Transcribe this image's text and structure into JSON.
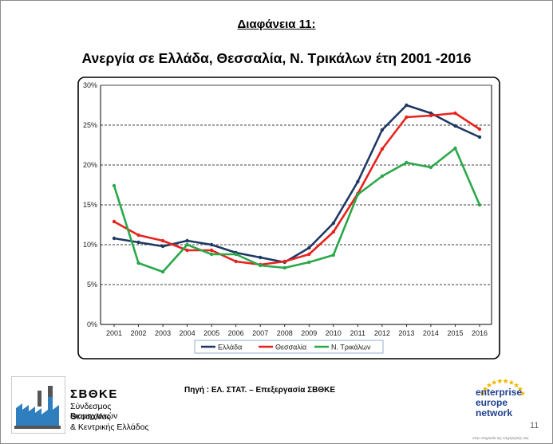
{
  "slide": {
    "title": "Διαφάνεια 11:",
    "chart_heading": "Ανεργία σε Ελλάδα, Θεσσαλία, Ν. Τρικάλων έτη 2001 -2016",
    "source": "Πηγή : ΕΛ. ΣΤΑΤ. – Επεξεργασία ΣΒΘΚΕ",
    "page_number": "11"
  },
  "logo_left": {
    "acronym": "ΣΒΘΚΕ",
    "name_lines": [
      "Σύνδεσμος Βιομηχανιών",
      "Θεσσαλίας",
      "& Κεντρικής Ελλάδος"
    ],
    "icon": "factory-logo-icon"
  },
  "logo_right": {
    "lines": [
      "enterprise",
      "europe",
      "network"
    ],
    "tagline": "στην υπηρεσία της επιχείρησής σας",
    "icon": "eu-stars-icon",
    "colors": {
      "text": "#1d3f8f",
      "stars": "#f2b700"
    }
  },
  "chart_data": {
    "type": "line",
    "x": [
      "2001",
      "2002",
      "2003",
      "2004",
      "2005",
      "2006",
      "2007",
      "2008",
      "2009",
      "2010",
      "2011",
      "2012",
      "2013",
      "2014",
      "2015",
      "2016"
    ],
    "ylim": [
      0,
      30
    ],
    "yticks": [
      "0%",
      "5%",
      "10%",
      "15%",
      "20%",
      "25%",
      "30%"
    ],
    "grid": "horizontal-dashed",
    "legend_position": "bottom",
    "series": [
      {
        "name": "Ελλάδα",
        "color": "#1f3864",
        "values": [
          10.8,
          10.3,
          9.8,
          10.5,
          10.0,
          9.0,
          8.4,
          7.8,
          9.6,
          12.7,
          17.9,
          24.4,
          27.5,
          26.5,
          24.9,
          23.5
        ]
      },
      {
        "name": "Θεσσαλία",
        "color": "#e8221c",
        "values": [
          12.9,
          11.2,
          10.5,
          9.3,
          9.3,
          7.9,
          7.5,
          7.9,
          8.8,
          11.6,
          16.4,
          22.0,
          26.0,
          26.2,
          26.5,
          24.5
        ]
      },
      {
        "name": "Ν. Τρικάλων",
        "color": "#2aa84a",
        "values": [
          17.4,
          7.7,
          6.6,
          10.0,
          8.8,
          8.8,
          7.4,
          7.1,
          7.8,
          8.7,
          16.3,
          18.6,
          20.3,
          19.7,
          22.1,
          15.0
        ]
      }
    ]
  }
}
